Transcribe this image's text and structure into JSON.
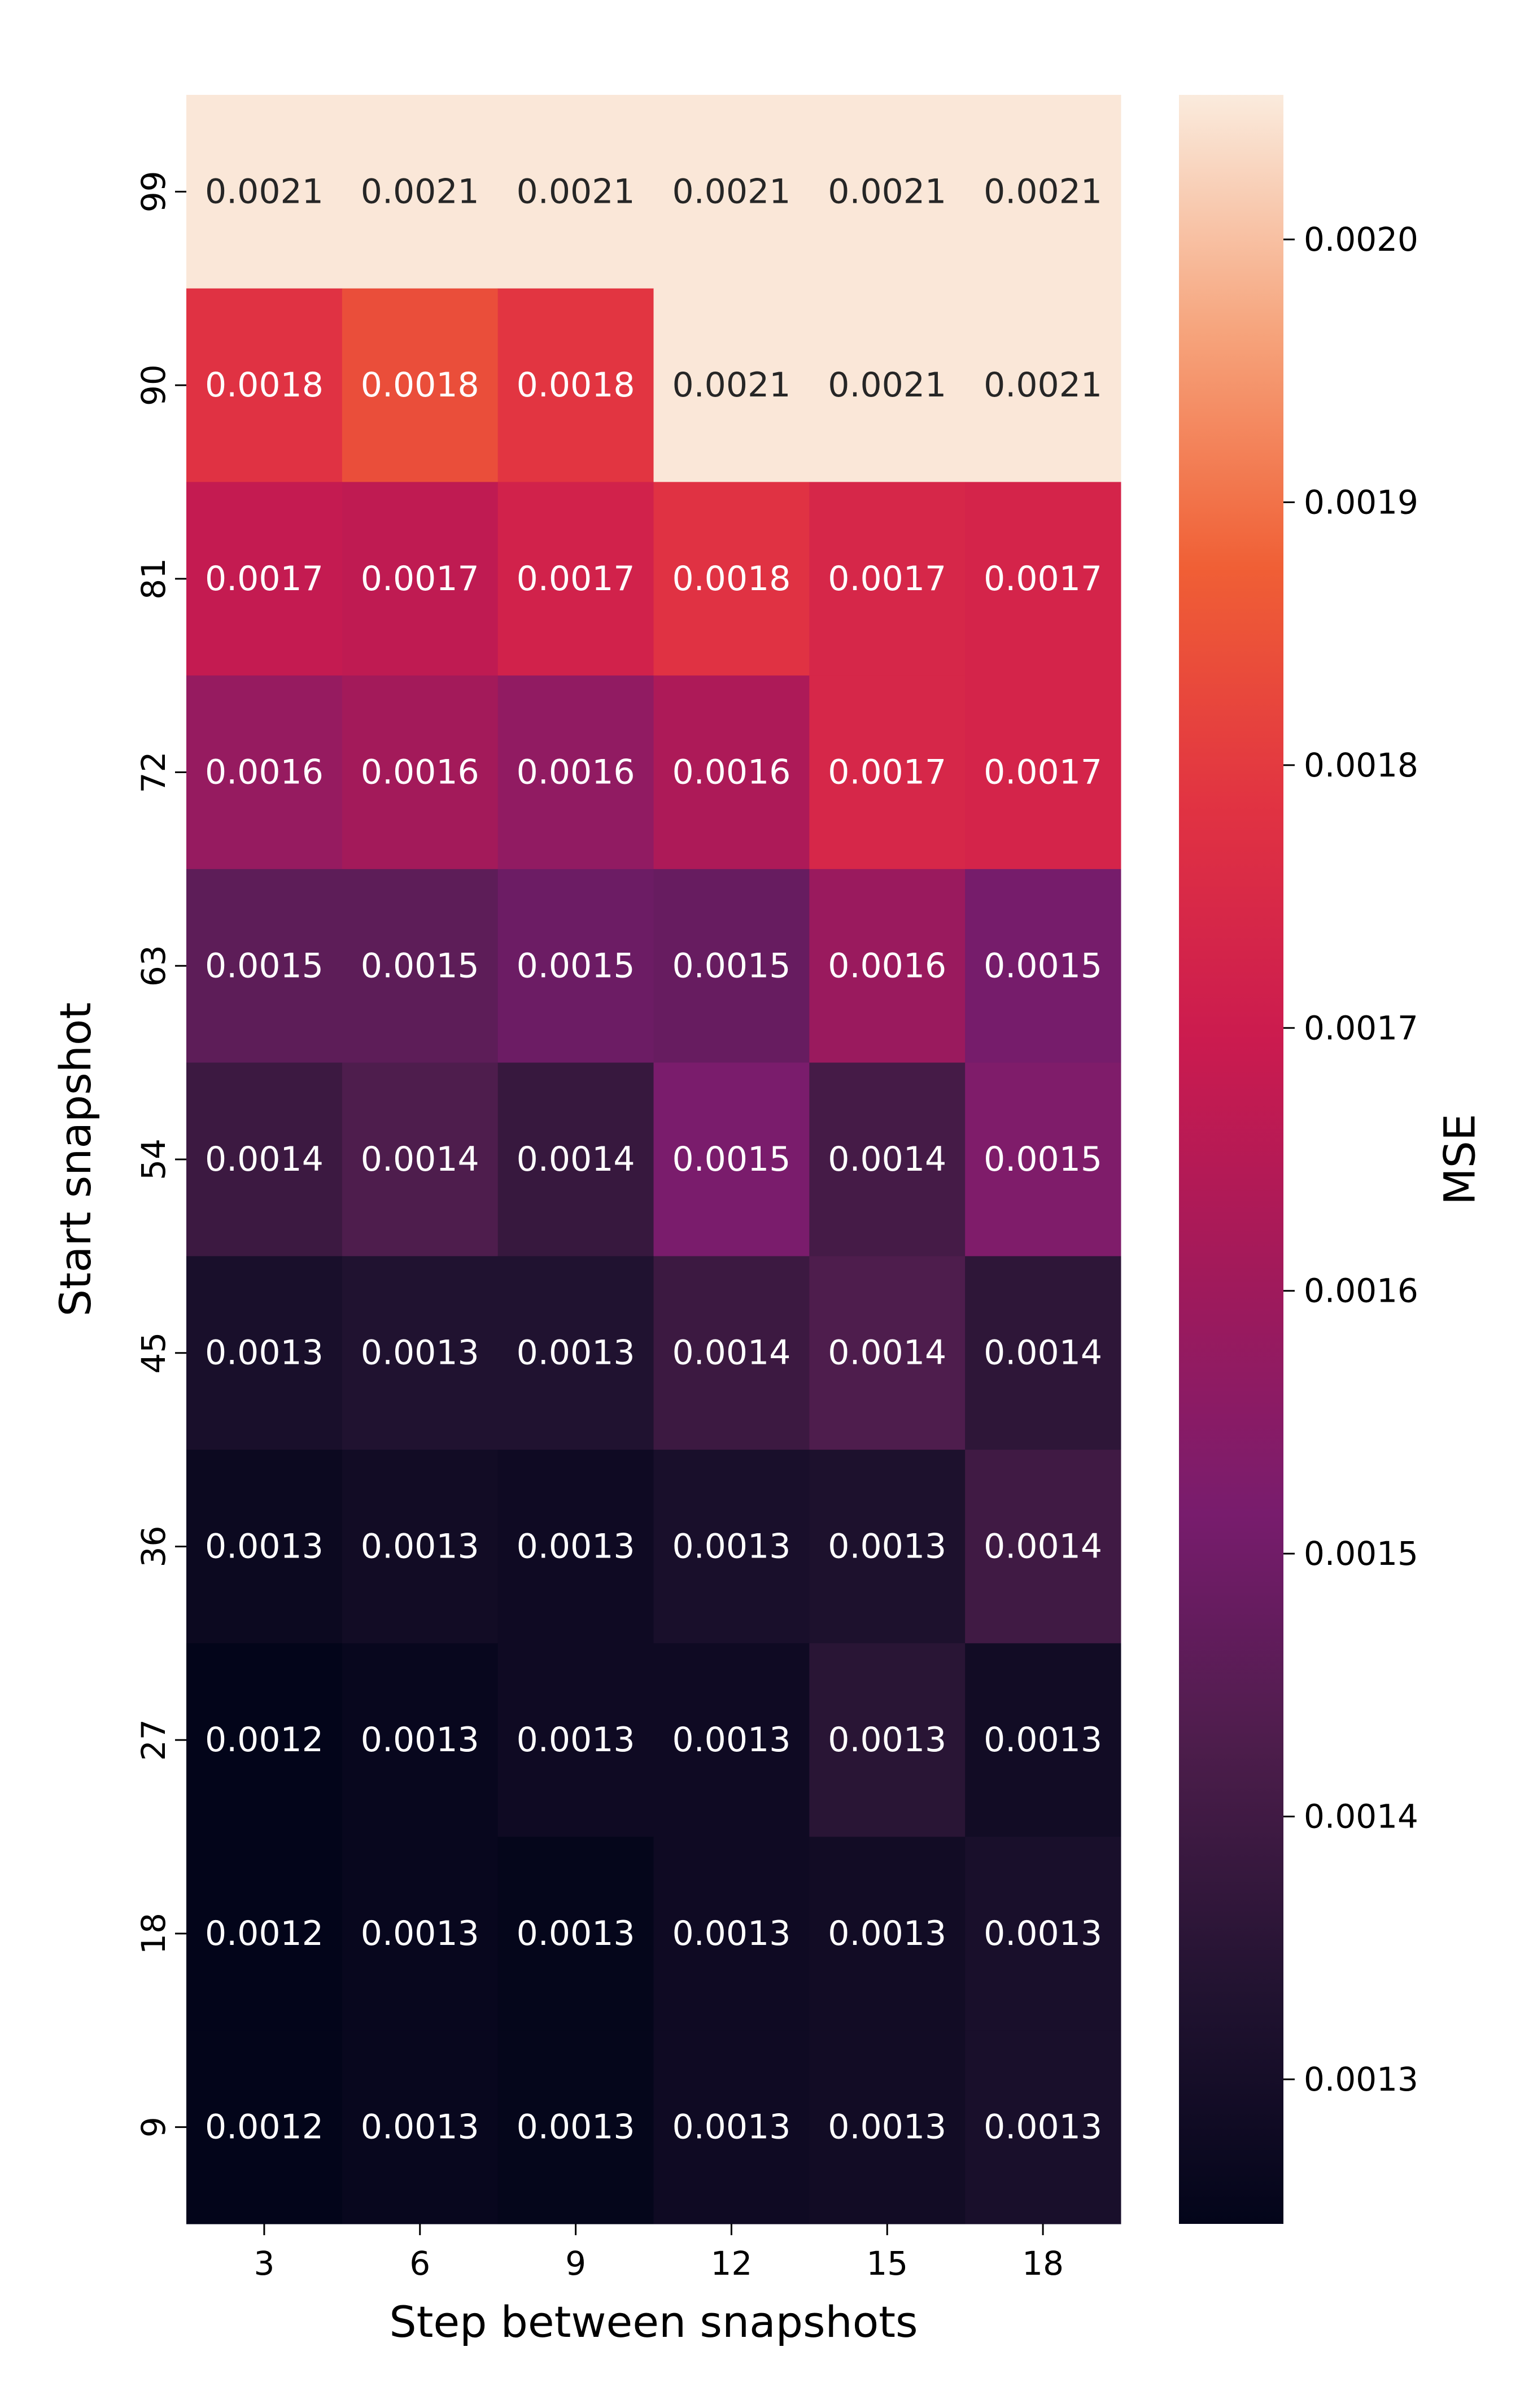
{
  "chart_data": {
    "type": "heatmap",
    "xlabel": "Step between snapshots",
    "ylabel": "Start snapshot",
    "x_categories": [
      "3",
      "6",
      "9",
      "12",
      "15",
      "18"
    ],
    "y_categories": [
      "99",
      "90",
      "81",
      "72",
      "63",
      "54",
      "45",
      "36",
      "27",
      "18",
      "9"
    ],
    "values": [
      [
        0.00205,
        0.00205,
        0.00205,
        0.00205,
        0.00205,
        0.00205
      ],
      [
        0.00178,
        0.00184,
        0.00179,
        0.00205,
        0.00205,
        0.00205
      ],
      [
        0.00168,
        0.00167,
        0.00172,
        0.00178,
        0.00174,
        0.00173
      ],
      [
        0.00158,
        0.00161,
        0.00157,
        0.00163,
        0.00174,
        0.00173
      ],
      [
        0.00146,
        0.00146,
        0.00149,
        0.00148,
        0.00159,
        0.00151
      ],
      [
        0.00139,
        0.00143,
        0.00138,
        0.00152,
        0.00141,
        0.00153
      ],
      [
        0.00131,
        0.00133,
        0.00133,
        0.00139,
        0.00143,
        0.00136
      ],
      [
        0.00127,
        0.00129,
        0.00128,
        0.00131,
        0.00132,
        0.0014
      ],
      [
        0.00124,
        0.00126,
        0.00128,
        0.00128,
        0.00135,
        0.00129
      ],
      [
        0.00124,
        0.00126,
        0.00125,
        0.00128,
        0.00129,
        0.00131
      ],
      [
        0.00124,
        0.00126,
        0.00125,
        0.00128,
        0.00129,
        0.00131
      ]
    ],
    "cell_labels": [
      [
        "0.0021",
        "0.0021",
        "0.0021",
        "0.0021",
        "0.0021",
        "0.0021"
      ],
      [
        "0.0018",
        "0.0018",
        "0.0018",
        "0.0021",
        "0.0021",
        "0.0021"
      ],
      [
        "0.0017",
        "0.0017",
        "0.0017",
        "0.0018",
        "0.0017",
        "0.0017"
      ],
      [
        "0.0016",
        "0.0016",
        "0.0016",
        "0.0016",
        "0.0017",
        "0.0017"
      ],
      [
        "0.0015",
        "0.0015",
        "0.0015",
        "0.0015",
        "0.0016",
        "0.0015"
      ],
      [
        "0.0014",
        "0.0014",
        "0.0014",
        "0.0015",
        "0.0014",
        "0.0015"
      ],
      [
        "0.0013",
        "0.0013",
        "0.0013",
        "0.0014",
        "0.0014",
        "0.0014"
      ],
      [
        "0.0013",
        "0.0013",
        "0.0013",
        "0.0013",
        "0.0013",
        "0.0014"
      ],
      [
        "0.0012",
        "0.0013",
        "0.0013",
        "0.0013",
        "0.0013",
        "0.0013"
      ],
      [
        "0.0012",
        "0.0013",
        "0.0013",
        "0.0013",
        "0.0013",
        "0.0013"
      ],
      [
        "0.0012",
        "0.0013",
        "0.0013",
        "0.0013",
        "0.0013",
        "0.0013"
      ]
    ],
    "colorbar": {
      "label": "MSE",
      "range": [
        0.001245,
        0.002055
      ],
      "ticks": [
        0.0013,
        0.0014,
        0.0015,
        0.0016,
        0.0017,
        0.0018,
        0.0019,
        0.002
      ],
      "tick_labels": [
        "0.0013",
        "0.0014",
        "0.0015",
        "0.0016",
        "0.0017",
        "0.0018",
        "0.0019",
        "0.0020"
      ]
    },
    "colormap": [
      "#03051a",
      "#221331",
      "#4c1d4b",
      "#781c6d",
      "#a11a5b",
      "#cb1b4f",
      "#e13342",
      "#f05f35",
      "#f6a47c",
      "#faebdd"
    ],
    "text_colors": {
      "light": "#ffffff",
      "dark": "#262626"
    },
    "legend": "colorbar-right",
    "grid": false
  }
}
